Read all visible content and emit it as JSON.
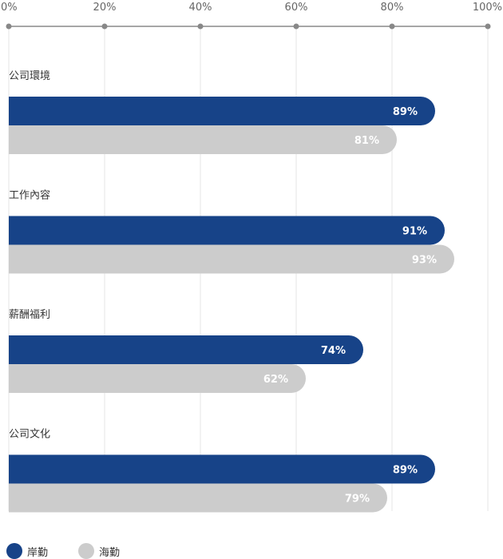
{
  "chart_data": {
    "type": "bar",
    "orientation": "horizontal",
    "x_ticks": [
      "0%",
      "20%",
      "40%",
      "60%",
      "80%",
      "100%"
    ],
    "xlim": [
      0,
      100
    ],
    "categories": [
      "公司環境",
      "工作內容",
      "薪酬福利",
      "公司文化"
    ],
    "series": [
      {
        "name": "岸勤",
        "color": "#174388",
        "values": [
          89,
          91,
          74,
          89
        ],
        "labels": [
          "89%",
          "91%",
          "74%",
          "89%"
        ]
      },
      {
        "name": "海勤",
        "color": "#cccccc",
        "values": [
          81,
          93,
          62,
          79
        ],
        "labels": [
          "81%",
          "93%",
          "62%",
          "79%"
        ]
      }
    ],
    "grid": true,
    "legend_position": "bottom-left"
  }
}
